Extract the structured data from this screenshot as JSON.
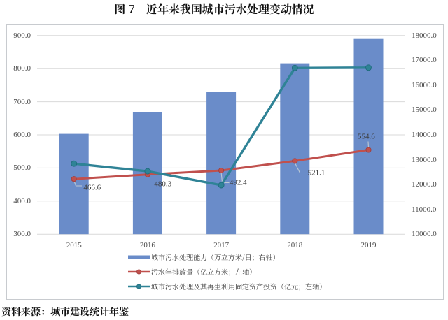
{
  "title": "图 7　近年来我国城市污水处理变动情况",
  "source_note": "资料来源：城市建设统计年鉴",
  "colors": {
    "bar_blue": "#6A8CC9",
    "line_red": "#C0504D",
    "line_teal": "#2F8396",
    "gridline": "#D9D9D9",
    "frame_border": "#C8CBCF",
    "leader_line": "#BDC9D4",
    "axis_text": "#4C4C4C",
    "label_text": "#3C3C3C",
    "title_text": "#111111"
  },
  "chart_data": {
    "type": "bar",
    "subtype": "combo-bar-line-dual-axis",
    "title": "图 7　近年来我国城市污水处理变动情况",
    "categories": [
      "2015",
      "2016",
      "2017",
      "2018",
      "2019"
    ],
    "series": [
      {
        "name": "城市污水处理能力（万立方米/日；右轴）",
        "type": "bar",
        "axis": "right",
        "unit": "万立方米/日",
        "color": "#6A8CC9",
        "values": [
          14038,
          14910,
          15743,
          16881,
          17863
        ]
      },
      {
        "name": "污水年排放量（亿立方米；左轴）",
        "type": "line",
        "axis": "left",
        "unit": "亿立方米",
        "color": "#C0504D",
        "values": [
          466.6,
          480.3,
          492.4,
          521.1,
          554.6
        ],
        "point_labels": [
          "466.6",
          "480.3",
          "492.4",
          "521.1",
          "554.6"
        ]
      },
      {
        "name": "城市污水处理及其再生利用固定资产投资（亿元；左轴）",
        "type": "line",
        "axis": "left",
        "unit": "亿元",
        "color": "#2F8396",
        "values": [
          513,
          490,
          448,
          802,
          803
        ]
      }
    ],
    "left_axis": {
      "min": 300,
      "max": 900,
      "step": 100,
      "tick_labels": [
        "300.0",
        "400.0",
        "500.0",
        "600.0",
        "700.0",
        "800.0",
        "900.0"
      ]
    },
    "right_axis": {
      "min": 10000,
      "max": 18000,
      "step": 1000,
      "tick_labels": [
        "10000.0",
        "11000.0",
        "12000.0",
        "13000.0",
        "14000.0",
        "15000.0",
        "16000.0",
        "17000.0",
        "18000.0"
      ]
    },
    "grid": true,
    "legend_position": "bottom-inside"
  }
}
